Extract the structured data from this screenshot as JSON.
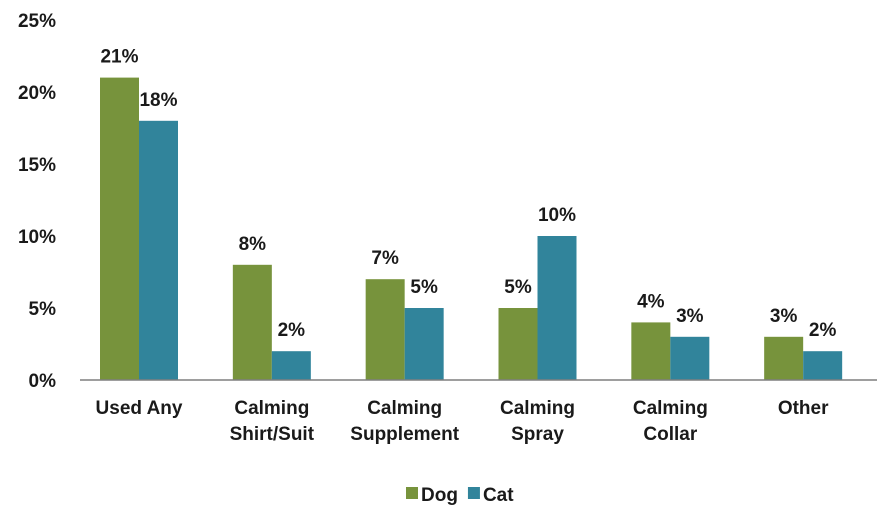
{
  "chart_data": {
    "type": "bar",
    "categories": [
      [
        "Used Any"
      ],
      [
        "Calming",
        "Shirt/Suit"
      ],
      [
        "Calming",
        "Supplement"
      ],
      [
        "Calming",
        "Spray"
      ],
      [
        "Calming",
        "Collar"
      ],
      [
        "Other"
      ]
    ],
    "series": [
      {
        "name": "Dog",
        "color": "#77933c",
        "values": [
          21,
          8,
          7,
          5,
          4,
          3
        ]
      },
      {
        "name": "Cat",
        "color": "#31849b",
        "values": [
          18,
          2,
          5,
          10,
          3,
          2
        ]
      }
    ],
    "ylim": [
      0,
      25
    ],
    "yticks": [
      0,
      5,
      10,
      15,
      20,
      25
    ],
    "value_suffix": "%",
    "tick_labels": [
      "0%",
      "5%",
      "10%",
      "15%",
      "20%",
      "25%"
    ],
    "grid": false,
    "legend_position": "bottom",
    "title": "",
    "xlabel": "",
    "ylabel": ""
  }
}
